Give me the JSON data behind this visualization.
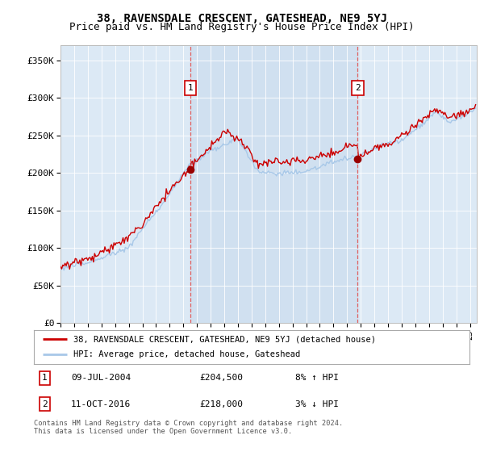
{
  "title": "38, RAVENSDALE CRESCENT, GATESHEAD, NE9 5YJ",
  "subtitle": "Price paid vs. HM Land Registry's House Price Index (HPI)",
  "ylabel_ticks": [
    "£0",
    "£50K",
    "£100K",
    "£150K",
    "£200K",
    "£250K",
    "£300K",
    "£350K"
  ],
  "ylim": [
    0,
    370000
  ],
  "xlim_start": 1995.0,
  "xlim_end": 2025.5,
  "sale1_x": 2004.52,
  "sale1_y": 204500,
  "sale2_x": 2016.78,
  "sale2_y": 218000,
  "hpi_color": "#a8c8e8",
  "price_color": "#cc0000",
  "shade_color": "#cfe0f0",
  "dashed_color": "#e06060",
  "legend_line1": "38, RAVENSDALE CRESCENT, GATESHEAD, NE9 5YJ (detached house)",
  "legend_line2": "HPI: Average price, detached house, Gateshead",
  "footnote": "Contains HM Land Registry data © Crown copyright and database right 2024.\nThis data is licensed under the Open Government Licence v3.0.",
  "background_color": "#dce9f5",
  "title_fontsize": 10,
  "subtitle_fontsize": 9
}
